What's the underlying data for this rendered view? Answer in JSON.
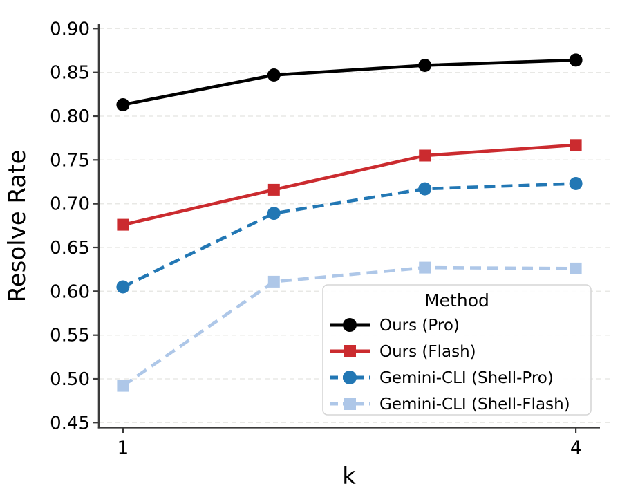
{
  "figure": {
    "background": "#ffffff"
  },
  "chart_data": {
    "type": "line",
    "title": "",
    "xlabel": "k",
    "ylabel": "Resolve Rate",
    "x": [
      1,
      2,
      3,
      4
    ],
    "xlim": [
      0.84,
      4.16
    ],
    "ylim": [
      0.4445,
      0.905
    ],
    "xticks": [
      1,
      4
    ],
    "xtick_labels": [
      "1",
      "4"
    ],
    "yticks": [
      0.45,
      0.5,
      0.55,
      0.6,
      0.65,
      0.7,
      0.75,
      0.8,
      0.85,
      0.9
    ],
    "ytick_labels": [
      "0.45",
      "0.50",
      "0.55",
      "0.60",
      "0.65",
      "0.70",
      "0.75",
      "0.80",
      "0.85",
      "0.90"
    ],
    "grid": "horizontal-dashed",
    "legend": {
      "title": "Method",
      "position": "lower-right-inside"
    },
    "series": [
      {
        "name": "Ours (Pro)",
        "color": "#000000",
        "linestyle": "solid",
        "marker": "circle",
        "values": [
          0.813,
          0.847,
          0.858,
          0.864
        ]
      },
      {
        "name": "Ours (Flash)",
        "color": "#cb2b2f",
        "linestyle": "solid",
        "marker": "square",
        "values": [
          0.676,
          0.716,
          0.755,
          0.767
        ]
      },
      {
        "name": "Gemini-CLI (Shell-Pro)",
        "color": "#2277b4",
        "linestyle": "dashed",
        "marker": "circle",
        "values": [
          0.605,
          0.689,
          0.717,
          0.723
        ]
      },
      {
        "name": "Gemini-CLI (Shell-Flash)",
        "color": "#aec7e8",
        "linestyle": "dashed",
        "marker": "square",
        "values": [
          0.492,
          0.611,
          0.627,
          0.626
        ]
      }
    ]
  }
}
